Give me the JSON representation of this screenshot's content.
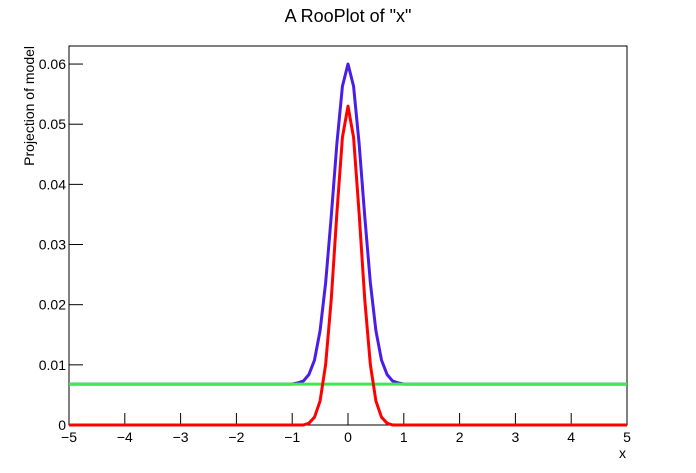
{
  "chart_data": {
    "type": "line",
    "title": "A RooPlot of \"x\"",
    "x_label": "x",
    "y_label": "Projection of model",
    "x": [
      -5,
      -4,
      -3,
      -2,
      -1.5,
      -1,
      -0.9,
      -0.8,
      -0.7,
      -0.6,
      -0.5,
      -0.4,
      -0.3,
      -0.2,
      -0.1,
      0,
      0.1,
      0.2,
      0.3,
      0.4,
      0.5,
      0.6,
      0.7,
      0.8,
      0.9,
      1,
      1.5,
      2,
      3,
      4,
      5
    ],
    "series": [
      {
        "color": "#4a1ee6",
        "values": [
          0.0068,
          0.0068,
          0.0068,
          0.0068,
          0.0068,
          0.0068,
          0.007,
          0.0073,
          0.0084,
          0.0108,
          0.0157,
          0.0237,
          0.0347,
          0.0467,
          0.0563,
          0.06,
          0.0563,
          0.0467,
          0.0347,
          0.0237,
          0.0157,
          0.0108,
          0.0084,
          0.0073,
          0.007,
          0.0068,
          0.0068,
          0.0068,
          0.0068,
          0.0068,
          0.0068
        ]
      },
      {
        "color": "#3ee84e",
        "values": [
          0.0068,
          0.0068,
          0.0068,
          0.0068,
          0.0068,
          0.0068,
          0.0068,
          0.0068,
          0.0068,
          0.0068,
          0.0068,
          0.0068,
          0.0068,
          0.0068,
          0.0068,
          0.0068,
          0.0068,
          0.0068,
          0.0068,
          0.0068,
          0.0068,
          0.0068,
          0.0068,
          0.0068,
          0.0068,
          0.0068,
          0.0068,
          0.0068,
          0.0068,
          0.0068,
          0.0068
        ]
      },
      {
        "color": "#ff0000",
        "values": [
          0,
          0,
          0,
          0,
          0,
          0,
          0,
          0,
          0.0003,
          0.0013,
          0.004,
          0.0101,
          0.0209,
          0.0351,
          0.0478,
          0.053,
          0.0478,
          0.0351,
          0.0209,
          0.0101,
          0.004,
          0.0013,
          0.0003,
          0,
          0,
          0,
          0,
          0,
          0,
          0,
          0
        ]
      }
    ],
    "xlim": [
      -5,
      5
    ],
    "xticks": [
      {
        "value": -5,
        "label": "−5"
      },
      {
        "value": -4,
        "label": "−4"
      },
      {
        "value": -3,
        "label": "−3"
      },
      {
        "value": -2,
        "label": "−2"
      },
      {
        "value": -1,
        "label": "−1"
      },
      0,
      1,
      2,
      3,
      4,
      5
    ],
    "ylim": [
      0,
      0.063
    ],
    "yticks": [
      0,
      0.01,
      0.02,
      0.03,
      0.04,
      0.05,
      0.06
    ]
  }
}
